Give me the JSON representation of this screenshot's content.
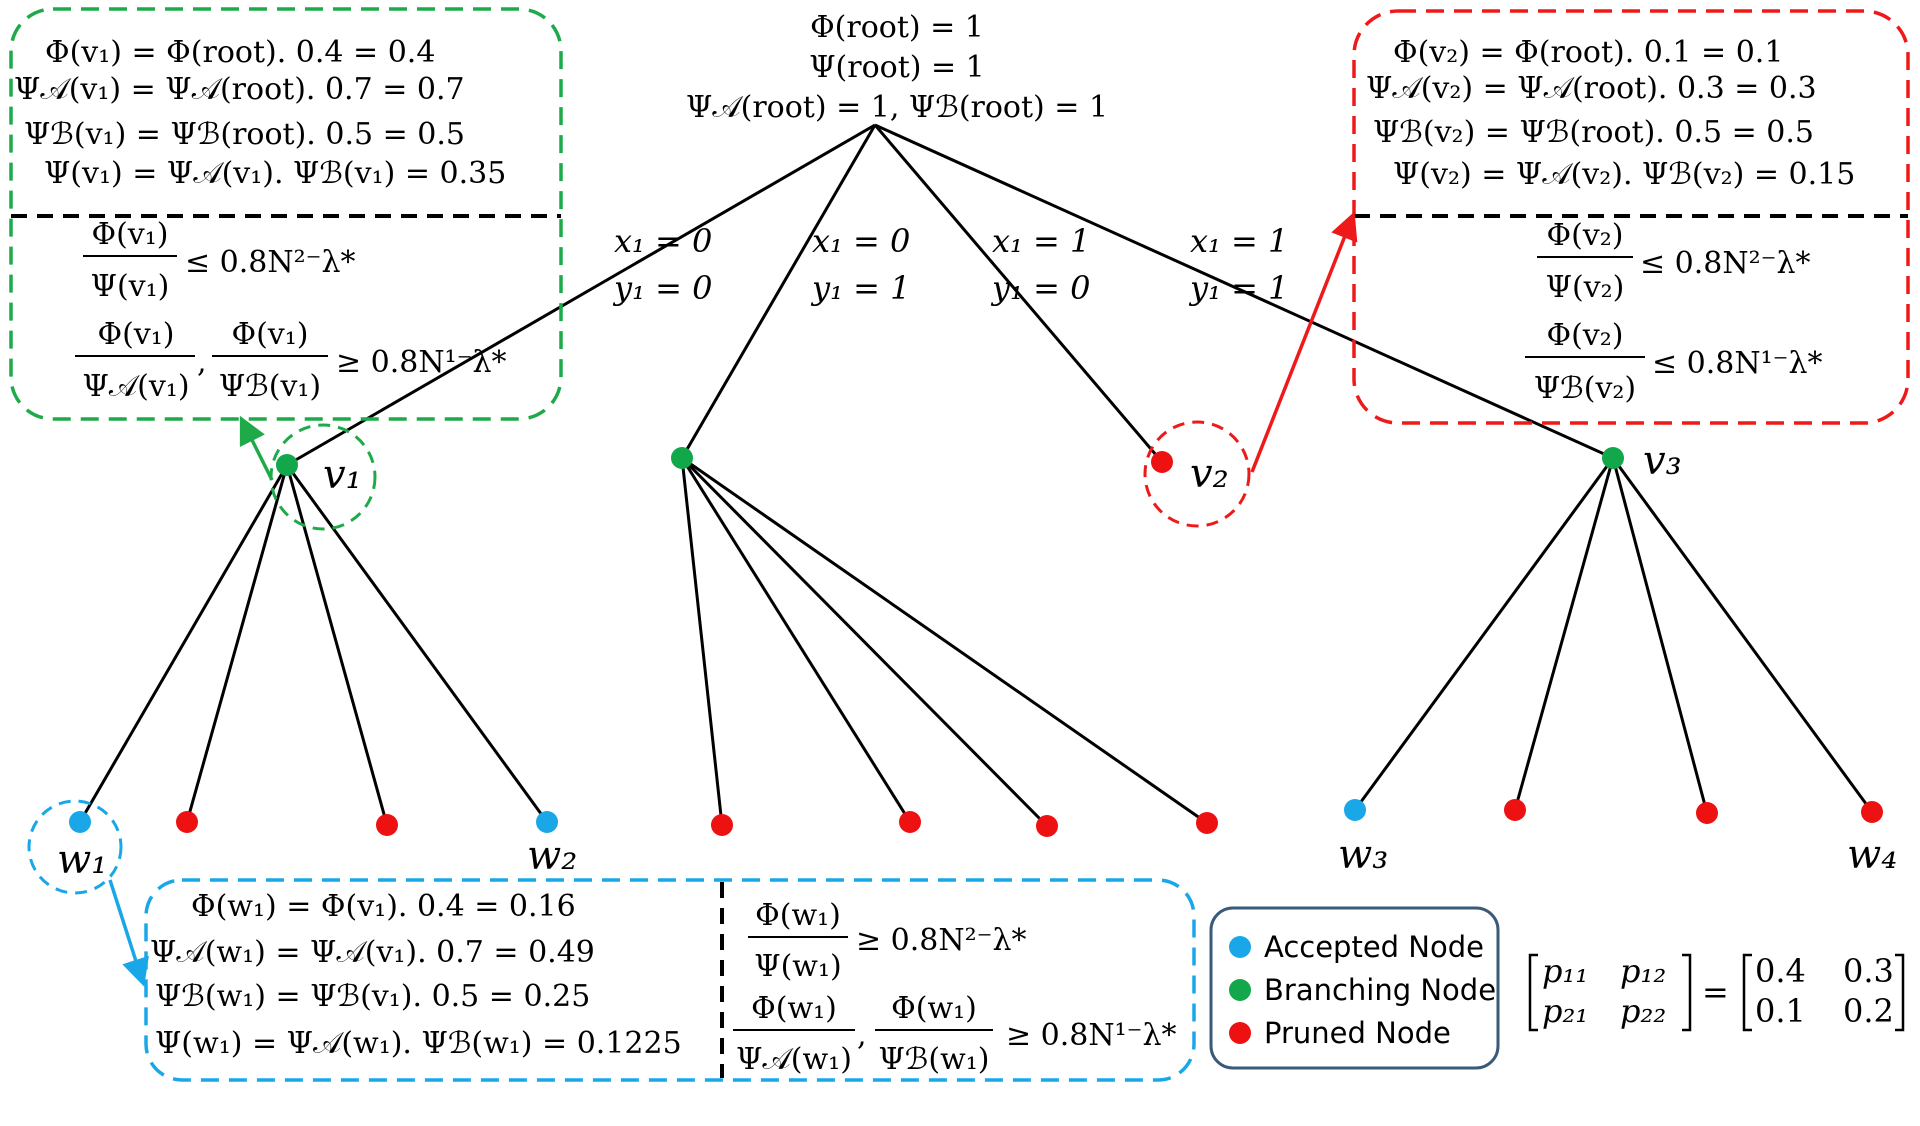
{
  "colors": {
    "accepted": "#1aa7e8",
    "branching": "#11a74a",
    "pruned": "#ee1111",
    "green_box": "#1faa4a",
    "red_box": "#ee1a1a",
    "blue_box": "#1aa7e8",
    "legend_border": "#3a5a7a"
  },
  "root_label": {
    "line1": "Φ(root) = 1",
    "line2": "Ψ(root) = 1",
    "line3": "Ψ𝒜(root) = 1, Ψℬ(root) = 1"
  },
  "edges": [
    {
      "x": "x₁ = 0",
      "y": "y₁ = 0"
    },
    {
      "x": "x₁ = 0",
      "y": "y₁ = 1"
    },
    {
      "x": "x₁ = 1",
      "y": "y₁ = 0"
    },
    {
      "x": "x₁ = 1",
      "y": "y₁ = 1"
    }
  ],
  "node_labels": {
    "v1": "v₁",
    "v2": "v₂",
    "v3": "v₃",
    "w1": "w₁",
    "w2": "w₂",
    "w3": "w₃",
    "w4": "w₄"
  },
  "green_box": {
    "l1": "Φ(v₁) = Φ(root). 0.4 = 0.4",
    "l2": "Ψ𝒜(v₁) = Ψ𝒜(root). 0.7 = 0.7",
    "l3": "Ψℬ(v₁) = Ψℬ(root). 0.5 = 0.5",
    "l4": "Ψ(v₁) = Ψ𝒜(v₁). Ψℬ(v₁) = 0.35",
    "f1_num": "Φ(v₁)",
    "f1_den": "Ψ(v₁)",
    "f1_rhs": "≤ 0.8N²⁻λ*",
    "f2_num_a": "Φ(v₁)",
    "f2_den_a": "Ψ𝒜(v₁)",
    "f2_num_b": "Φ(v₁)",
    "f2_den_b": "Ψℬ(v₁)",
    "f2_rhs": "≥ 0.8N¹⁻λ*"
  },
  "red_box": {
    "l1": "Φ(v₂) = Φ(root). 0.1 = 0.1",
    "l2": "Ψ𝒜(v₂) = Ψ𝒜(root). 0.3 = 0.3",
    "l3": "Ψℬ(v₂) = Ψℬ(root). 0.5 = 0.5",
    "l4": "Ψ(v₂) = Ψ𝒜(v₂). Ψℬ(v₂) = 0.15",
    "f1_num": "Φ(v₂)",
    "f1_den": "Ψ(v₂)",
    "f1_rhs": "≤ 0.8N²⁻λ*",
    "f2_num": "Φ(v₂)",
    "f2_den": "Ψℬ(v₂)",
    "f2_rhs": "≤ 0.8N¹⁻λ*"
  },
  "blue_box": {
    "l1": "Φ(w₁) = Φ(v₁). 0.4 = 0.16",
    "l2": "Ψ𝒜(w₁) = Ψ𝒜(v₁). 0.7 = 0.49",
    "l3": "Ψℬ(w₁) = Ψℬ(v₁). 0.5 = 0.25",
    "l4": "Ψ(w₁) = Ψ𝒜(w₁). Ψℬ(w₁) = 0.1225",
    "f1_num": "Φ(w₁)",
    "f1_den": "Ψ(w₁)",
    "f1_rhs": "≥ 0.8N²⁻λ*",
    "f2_num_a": "Φ(w₁)",
    "f2_den_a": "Ψ𝒜(w₁)",
    "f2_num_b": "Φ(w₁)",
    "f2_den_b": "Ψℬ(w₁)",
    "f2_rhs": "≥ 0.8N¹⁻λ*"
  },
  "legend": {
    "accepted": "Accepted Node",
    "branching": "Branching Node",
    "pruned": "Pruned Node"
  },
  "matrix": {
    "lhs": [
      [
        "p₁₁",
        "p₁₂"
      ],
      [
        "p₂₁",
        "p₂₂"
      ]
    ],
    "eq": "=",
    "rhs": [
      [
        "0.4",
        "0.3"
      ],
      [
        "0.1",
        "0.2"
      ]
    ]
  }
}
